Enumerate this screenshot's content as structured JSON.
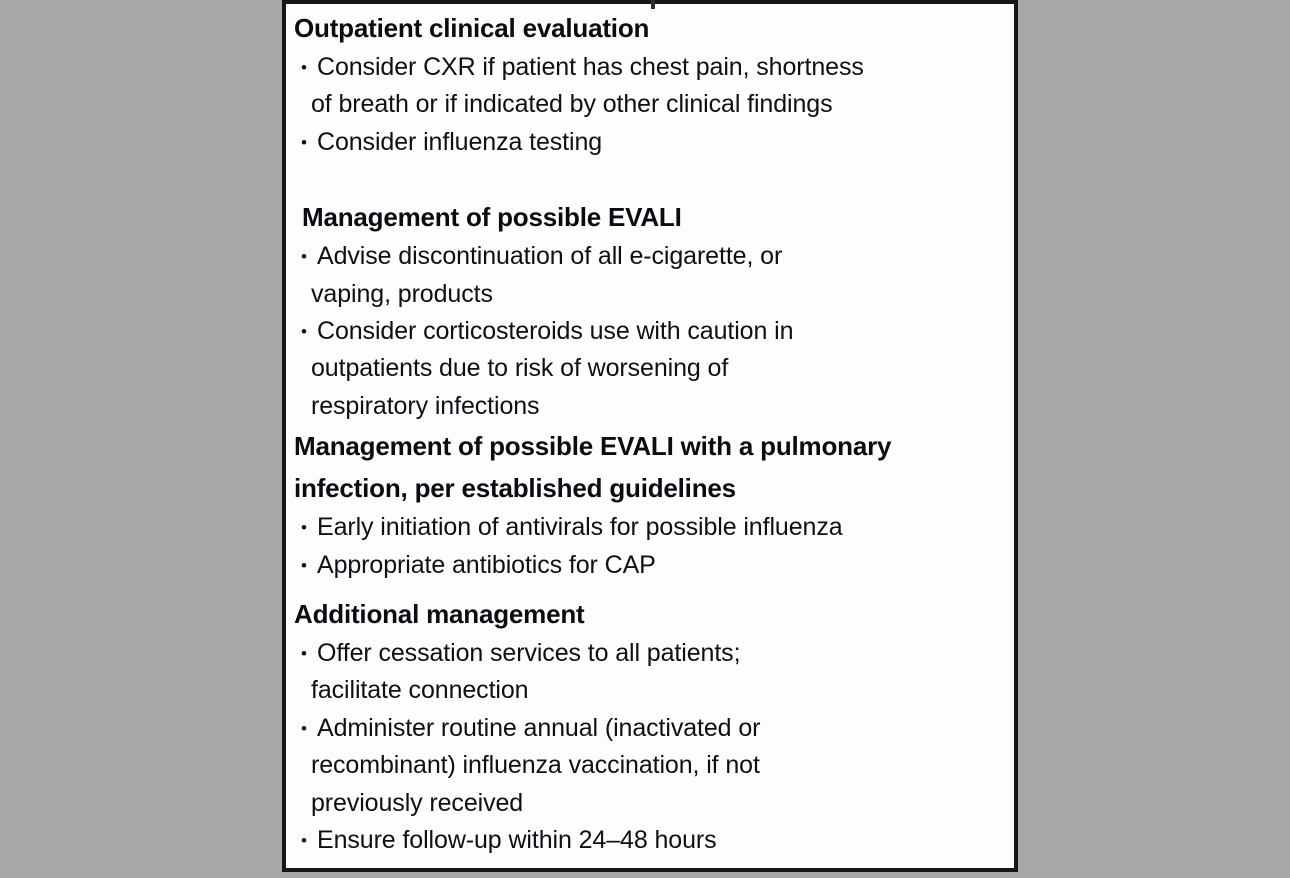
{
  "colors": {
    "canvas_background": "#a8a8a8",
    "panel_background": "#fdfdfd",
    "panel_border": "#161616",
    "text": "#0f0f16"
  },
  "panel": {
    "sections": [
      {
        "heading": "Outpatient clinical evaluation",
        "bullets": [
          "Consider CXR if patient has chest pain, shortness\nof breath or if indicated by other clinical findings",
          "Consider influenza testing"
        ]
      },
      {
        "heading": "Management of possible EVALI",
        "bullets": [
          "Advise discontinuation of all e-cigarette, or\nvaping, products",
          "Consider corticosteroids use with caution in\noutpatients due to risk of worsening of\nrespiratory infections"
        ]
      },
      {
        "heading": "Management of possible EVALI with a pulmonary\ninfection, per established guidelines",
        "bullets": [
          "Early initiation of antivirals for possible influenza",
          "Appropriate antibiotics for CAP"
        ]
      },
      {
        "heading": "Additional management",
        "bullets": [
          "Offer cessation services to all patients;\nfacilitate connection",
          "Administer routine annual (inactivated or\nrecombinant) influenza vaccination, if not\npreviously received",
          "Ensure follow-up within 24–48 hours"
        ]
      }
    ]
  }
}
